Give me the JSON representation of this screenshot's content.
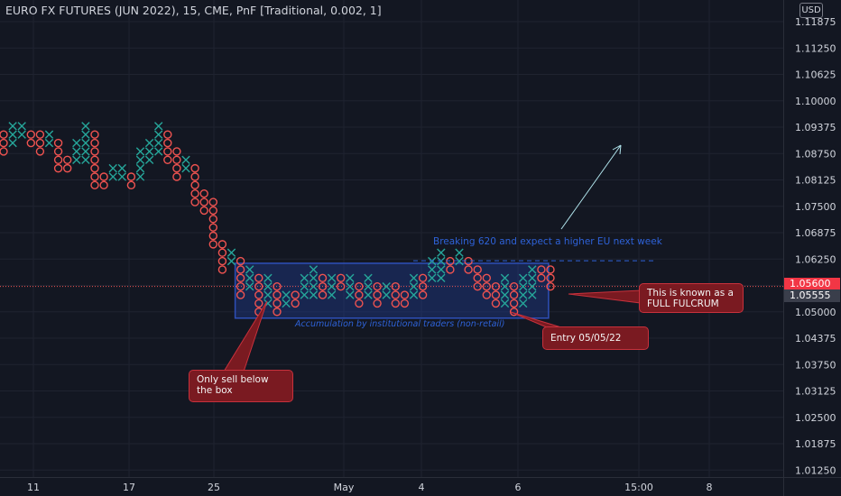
{
  "header": {
    "title": "EURO FX FUTURES (JUN 2022), 15, CME, PnF [Traditional, 0.002, 1]",
    "currency": "USD"
  },
  "price_tags": {
    "current": "1.05600",
    "last": "1.05555"
  },
  "annotations": {
    "sell_note": [
      "Only sell below",
      "the box"
    ],
    "fulcrum_note": [
      "This is known as a",
      "FULL FULCRUM"
    ],
    "entry_note": "Entry 05/05/22",
    "box_label": "Accumulation by institutional traders (non-retail)",
    "breakout_label": "Breaking 620 and expect a higher EU next week"
  },
  "colors": {
    "background": "#131722",
    "x_boxes": "#26a69a",
    "o_boxes": "#ef5350",
    "accumulation_box": "#1e3a8a",
    "callout": "#7a1a21",
    "price_tag": "#f23645"
  },
  "chart_data": {
    "type": "point-and-figure",
    "title": "EURO FX FUTURES (JUN 2022), 15, CME, PnF [Traditional, 0.002, 1]",
    "box_size": 0.002,
    "reversal": 1,
    "y_axis": {
      "ticks": [
        "1.11875",
        "1.11250",
        "1.10625",
        "1.10000",
        "1.09375",
        "1.08750",
        "1.08125",
        "1.07500",
        "1.06875",
        "1.06250",
        "1.05625",
        "1.05000",
        "1.04375",
        "1.03750",
        "1.03125",
        "1.02500",
        "1.01875",
        "1.01250"
      ],
      "range": [
        1.0095,
        1.1205
      ]
    },
    "x_axis": {
      "ticks": [
        "11",
        "17",
        "25",
        "May",
        "4",
        "6",
        "15:00",
        "8"
      ]
    },
    "current_price": 1.056,
    "last_price": 1.05555,
    "accumulation_box": {
      "price_low": 1.0485,
      "price_high": 1.0615,
      "from_column": 26,
      "to_column": 59
    },
    "breakout_level": 1.062,
    "columns": [
      {
        "t": "O",
        "lo": 1.088,
        "hi": 1.092
      },
      {
        "t": "X",
        "lo": 1.09,
        "hi": 1.094
      },
      {
        "t": "X",
        "lo": 1.092,
        "hi": 1.094
      },
      {
        "t": "O",
        "lo": 1.09,
        "hi": 1.092
      },
      {
        "t": "O",
        "lo": 1.088,
        "hi": 1.092
      },
      {
        "t": "X",
        "lo": 1.09,
        "hi": 1.092
      },
      {
        "t": "O",
        "lo": 1.084,
        "hi": 1.09
      },
      {
        "t": "O",
        "lo": 1.084,
        "hi": 1.086
      },
      {
        "t": "X",
        "lo": 1.086,
        "hi": 1.09
      },
      {
        "t": "X",
        "lo": 1.086,
        "hi": 1.094
      },
      {
        "t": "O",
        "lo": 1.08,
        "hi": 1.092
      },
      {
        "t": "O",
        "lo": 1.08,
        "hi": 1.082
      },
      {
        "t": "X",
        "lo": 1.082,
        "hi": 1.084
      },
      {
        "t": "X",
        "lo": 1.082,
        "hi": 1.084
      },
      {
        "t": "O",
        "lo": 1.08,
        "hi": 1.082
      },
      {
        "t": "X",
        "lo": 1.082,
        "hi": 1.088
      },
      {
        "t": "X",
        "lo": 1.086,
        "hi": 1.09
      },
      {
        "t": "X",
        "lo": 1.088,
        "hi": 1.094
      },
      {
        "t": "O",
        "lo": 1.086,
        "hi": 1.092
      },
      {
        "t": "O",
        "lo": 1.082,
        "hi": 1.088
      },
      {
        "t": "X",
        "lo": 1.084,
        "hi": 1.086
      },
      {
        "t": "O",
        "lo": 1.076,
        "hi": 1.084
      },
      {
        "t": "O",
        "lo": 1.074,
        "hi": 1.078
      },
      {
        "t": "O",
        "lo": 1.066,
        "hi": 1.076
      },
      {
        "t": "O",
        "lo": 1.06,
        "hi": 1.066
      },
      {
        "t": "X",
        "lo": 1.062,
        "hi": 1.064
      },
      {
        "t": "O",
        "lo": 1.054,
        "hi": 1.062
      },
      {
        "t": "X",
        "lo": 1.056,
        "hi": 1.06
      },
      {
        "t": "O",
        "lo": 1.05,
        "hi": 1.058
      },
      {
        "t": "X",
        "lo": 1.052,
        "hi": 1.058
      },
      {
        "t": "O",
        "lo": 1.05,
        "hi": 1.056
      },
      {
        "t": "X",
        "lo": 1.052,
        "hi": 1.054
      },
      {
        "t": "O",
        "lo": 1.052,
        "hi": 1.054
      },
      {
        "t": "X",
        "lo": 1.054,
        "hi": 1.058
      },
      {
        "t": "X",
        "lo": 1.054,
        "hi": 1.06
      },
      {
        "t": "O",
        "lo": 1.054,
        "hi": 1.058
      },
      {
        "t": "X",
        "lo": 1.054,
        "hi": 1.058
      },
      {
        "t": "O",
        "lo": 1.056,
        "hi": 1.058
      },
      {
        "t": "X",
        "lo": 1.054,
        "hi": 1.058
      },
      {
        "t": "O",
        "lo": 1.052,
        "hi": 1.056
      },
      {
        "t": "X",
        "lo": 1.054,
        "hi": 1.058
      },
      {
        "t": "O",
        "lo": 1.052,
        "hi": 1.056
      },
      {
        "t": "X",
        "lo": 1.054,
        "hi": 1.056
      },
      {
        "t": "O",
        "lo": 1.052,
        "hi": 1.056
      },
      {
        "t": "O",
        "lo": 1.052,
        "hi": 1.054
      },
      {
        "t": "X",
        "lo": 1.054,
        "hi": 1.058
      },
      {
        "t": "O",
        "lo": 1.054,
        "hi": 1.058
      },
      {
        "t": "X",
        "lo": 1.058,
        "hi": 1.062
      },
      {
        "t": "X",
        "lo": 1.058,
        "hi": 1.064
      },
      {
        "t": "O",
        "lo": 1.06,
        "hi": 1.062
      },
      {
        "t": "X",
        "lo": 1.062,
        "hi": 1.064
      },
      {
        "t": "O",
        "lo": 1.06,
        "hi": 1.062
      },
      {
        "t": "O",
        "lo": 1.056,
        "hi": 1.06
      },
      {
        "t": "O",
        "lo": 1.054,
        "hi": 1.058
      },
      {
        "t": "O",
        "lo": 1.052,
        "hi": 1.056
      },
      {
        "t": "X",
        "lo": 1.052,
        "hi": 1.058
      },
      {
        "t": "O",
        "lo": 1.05,
        "hi": 1.056
      },
      {
        "t": "X",
        "lo": 1.052,
        "hi": 1.058
      },
      {
        "t": "X",
        "lo": 1.054,
        "hi": 1.06
      },
      {
        "t": "O",
        "lo": 1.058,
        "hi": 1.06
      },
      {
        "t": "O",
        "lo": 1.056,
        "hi": 1.06
      }
    ]
  }
}
